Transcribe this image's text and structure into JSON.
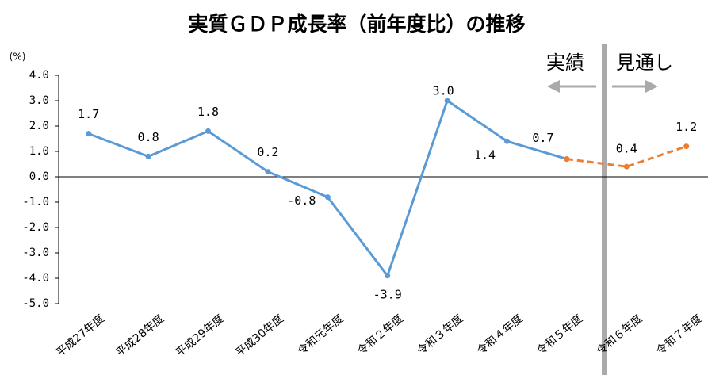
{
  "chart_data": {
    "type": "line",
    "title": "実質ＧＤＰ成長率（前年度比）の推移",
    "y_label": "(%)",
    "annotations": [
      "実績",
      "見通し"
    ],
    "categories": [
      "平成27年度",
      "平成28年度",
      "平成29年度",
      "平成30年度",
      "令和元年度",
      "令和２年度",
      "令和３年度",
      "令和４年度",
      "令和５年度",
      "令和６年度",
      "令和７年度"
    ],
    "series": [
      {
        "name": "実績",
        "color": "#5b9bd5",
        "dashed": false,
        "values": [
          1.7,
          0.8,
          1.8,
          0.2,
          -0.8,
          -3.9,
          3.0,
          1.4,
          0.7,
          null,
          null
        ],
        "value_labels": [
          "1.7",
          "0.8",
          "1.8",
          "0.2",
          "-0.8",
          "-3.9",
          "3.0",
          "1.4",
          "0.7",
          null,
          null
        ]
      },
      {
        "name": "見通し",
        "color": "#ed7d31",
        "dashed": true,
        "values": [
          null,
          null,
          null,
          null,
          null,
          null,
          null,
          null,
          0.7,
          0.4,
          1.2
        ],
        "value_labels": [
          null,
          null,
          null,
          null,
          null,
          null,
          null,
          null,
          null,
          "0.4",
          "1.2"
        ]
      }
    ],
    "ylim": [
      -5,
      4
    ],
    "yticks": [
      {
        "value": -5,
        "label": "-5.0"
      },
      {
        "value": -4,
        "label": "-4.0"
      },
      {
        "value": -3,
        "label": "-3.0"
      },
      {
        "value": -2,
        "label": "-2.0"
      },
      {
        "value": -1,
        "label": "-1.0"
      },
      {
        "value": 0,
        "label": "0.0"
      },
      {
        "value": 1,
        "label": "1.0"
      },
      {
        "value": 2,
        "label": "2.0"
      },
      {
        "value": 3,
        "label": "3.0"
      },
      {
        "value": 4,
        "label": "4.0"
      }
    ],
    "grid": false,
    "legend": false
  }
}
